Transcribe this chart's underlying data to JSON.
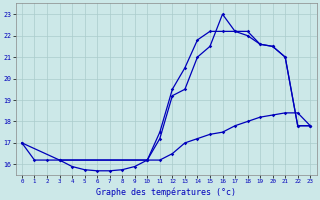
{
  "title": "Graphe des températures (°c)",
  "bg_color": "#cce8e8",
  "grid_color": "#aacccc",
  "line_color": "#0000bb",
  "x_min": -0.5,
  "x_max": 23.5,
  "y_min": 15.5,
  "y_max": 23.5,
  "yticks": [
    16,
    17,
    18,
    19,
    20,
    21,
    22,
    23
  ],
  "xticks": [
    0,
    1,
    2,
    3,
    4,
    5,
    6,
    7,
    8,
    9,
    10,
    11,
    12,
    13,
    14,
    15,
    16,
    17,
    18,
    19,
    20,
    21,
    22,
    23
  ],
  "line1_x": [
    0,
    1,
    2,
    3,
    4,
    5,
    6,
    7,
    8,
    9,
    10,
    11,
    12,
    13,
    14,
    15,
    16,
    17,
    18,
    19,
    20,
    21,
    22,
    23
  ],
  "line1_y": [
    17.0,
    16.2,
    16.2,
    16.2,
    15.9,
    15.75,
    15.7,
    15.7,
    15.75,
    15.9,
    16.2,
    16.2,
    16.5,
    17.0,
    17.2,
    17.4,
    17.5,
    17.8,
    18.0,
    18.2,
    18.3,
    18.4,
    18.4,
    17.8
  ],
  "line2_x": [
    0,
    3,
    10,
    11,
    12,
    13,
    14,
    15,
    16,
    17,
    18,
    19,
    20,
    21,
    22,
    23
  ],
  "line2_y": [
    17.0,
    16.2,
    16.2,
    17.5,
    19.5,
    20.5,
    21.8,
    22.2,
    22.2,
    22.2,
    22.2,
    21.6,
    21.5,
    21.0,
    17.8,
    17.8
  ],
  "line3_x": [
    3,
    10,
    11,
    12,
    13,
    14,
    15,
    16,
    17,
    18,
    19,
    20,
    21,
    22,
    23
  ],
  "line3_y": [
    16.2,
    16.2,
    17.2,
    19.2,
    19.5,
    21.0,
    21.5,
    23.0,
    22.2,
    22.0,
    21.6,
    21.5,
    21.0,
    17.8,
    17.8
  ]
}
